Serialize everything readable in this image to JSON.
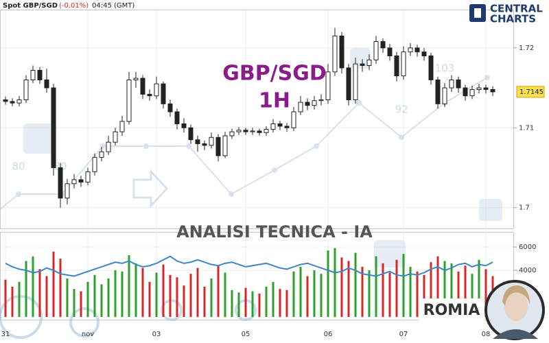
{
  "header": {
    "symbol": "Spot GBP/SGD",
    "change": "(-0.01%)",
    "time": "04:45 (GMT)"
  },
  "logo": {
    "line1": "CENTRAL",
    "line2": "CHARTS"
  },
  "watermark": {
    "labels": [
      "80",
      "80",
      "92",
      "103"
    ]
  },
  "badge": "ROMIA",
  "chart_data": {
    "type": "candlestick",
    "title": "GBP/SGD",
    "subtitle": "1H",
    "annotation": "ANALISI TECNICA - IA",
    "categories": [
      "31",
      null,
      null,
      null,
      null,
      null,
      null,
      null,
      null,
      null,
      null,
      null,
      "nov",
      null,
      null,
      null,
      null,
      null,
      null,
      null,
      null,
      null,
      "03",
      null,
      null,
      null,
      null,
      null,
      null,
      null,
      null,
      null,
      null,
      null,
      null,
      "05",
      null,
      null,
      null,
      null,
      null,
      null,
      null,
      null,
      null,
      null,
      null,
      "06",
      null,
      null,
      null,
      null,
      null,
      null,
      null,
      null,
      null,
      null,
      "07",
      null,
      null,
      null,
      null,
      null,
      null,
      null,
      null,
      null,
      null,
      null,
      "08",
      null
    ],
    "ohlc": [
      [
        1.7135,
        1.7139,
        1.7129,
        1.7133
      ],
      [
        1.7133,
        1.7137,
        1.7127,
        1.7131
      ],
      [
        1.7131,
        1.714,
        1.7127,
        1.7135
      ],
      [
        1.7135,
        1.7166,
        1.7131,
        1.716
      ],
      [
        1.716,
        1.7178,
        1.7156,
        1.7172
      ],
      [
        1.7172,
        1.7176,
        1.7155,
        1.716
      ],
      [
        1.716,
        1.7174,
        1.7144,
        1.715
      ],
      [
        1.715,
        1.7155,
        1.704,
        1.705
      ],
      [
        1.705,
        1.7056,
        1.7,
        1.7012
      ],
      [
        1.7012,
        1.7036,
        1.7004,
        1.703
      ],
      [
        1.703,
        1.7042,
        1.7024,
        1.7035
      ],
      [
        1.7035,
        1.704,
        1.7026,
        1.7032
      ],
      [
        1.7032,
        1.705,
        1.7028,
        1.7045
      ],
      [
        1.7045,
        1.7068,
        1.704,
        1.7063
      ],
      [
        1.7063,
        1.7076,
        1.7058,
        1.707
      ],
      [
        1.707,
        1.709,
        1.7066,
        1.7082
      ],
      [
        1.7082,
        1.71,
        1.7078,
        1.7095
      ],
      [
        1.7095,
        1.7115,
        1.709,
        1.7108
      ],
      [
        1.7108,
        1.717,
        1.7104,
        1.716
      ],
      [
        1.716,
        1.717,
        1.715,
        1.7162
      ],
      [
        1.7162,
        1.7166,
        1.7136,
        1.7142
      ],
      [
        1.7142,
        1.7148,
        1.7134,
        1.714
      ],
      [
        1.714,
        1.7164,
        1.7136,
        1.7155
      ],
      [
        1.7155,
        1.7158,
        1.7124,
        1.713
      ],
      [
        1.713,
        1.7135,
        1.7114,
        1.712
      ],
      [
        1.712,
        1.7124,
        1.7098,
        1.7105
      ],
      [
        1.7105,
        1.7112,
        1.7094,
        1.71
      ],
      [
        1.71,
        1.7104,
        1.708,
        1.7085
      ],
      [
        1.7085,
        1.709,
        1.707,
        1.708
      ],
      [
        1.708,
        1.7084,
        1.7072,
        1.7078
      ],
      [
        1.7078,
        1.7094,
        1.7074,
        1.7088
      ],
      [
        1.7088,
        1.7092,
        1.7058,
        1.7065
      ],
      [
        1.7065,
        1.7095,
        1.7062,
        1.709
      ],
      [
        1.709,
        1.7099,
        1.7086,
        1.7095
      ],
      [
        1.7095,
        1.7101,
        1.7091,
        1.7097
      ],
      [
        1.7097,
        1.71,
        1.7091,
        1.7095
      ],
      [
        1.7095,
        1.71,
        1.7091,
        1.7096
      ],
      [
        1.7096,
        1.7099,
        1.709,
        1.7094
      ],
      [
        1.7094,
        1.7102,
        1.709,
        1.7098
      ],
      [
        1.7098,
        1.7111,
        1.7094,
        1.7105
      ],
      [
        1.7105,
        1.7109,
        1.7097,
        1.7102
      ],
      [
        1.7102,
        1.7106,
        1.7095,
        1.71
      ],
      [
        1.71,
        1.7126,
        1.7096,
        1.712
      ],
      [
        1.712,
        1.714,
        1.7116,
        1.7132
      ],
      [
        1.7132,
        1.7137,
        1.7122,
        1.7128
      ],
      [
        1.7128,
        1.714,
        1.7123,
        1.7134
      ],
      [
        1.7134,
        1.7142,
        1.7128,
        1.7135
      ],
      [
        1.7135,
        1.718,
        1.713,
        1.717
      ],
      [
        1.717,
        1.7225,
        1.7165,
        1.7215
      ],
      [
        1.7215,
        1.722,
        1.7168,
        1.7175
      ],
      [
        1.7175,
        1.718,
        1.7128,
        1.7135
      ],
      [
        1.7135,
        1.7188,
        1.713,
        1.718
      ],
      [
        1.718,
        1.7186,
        1.717,
        1.7178
      ],
      [
        1.7178,
        1.7192,
        1.7172,
        1.7185
      ],
      [
        1.7185,
        1.7215,
        1.718,
        1.7208
      ],
      [
        1.7208,
        1.7212,
        1.7194,
        1.72
      ],
      [
        1.72,
        1.7205,
        1.7184,
        1.719
      ],
      [
        1.719,
        1.7195,
        1.7158,
        1.7165
      ],
      [
        1.7165,
        1.7202,
        1.716,
        1.7195
      ],
      [
        1.7195,
        1.7206,
        1.719,
        1.72
      ],
      [
        1.72,
        1.7204,
        1.7189,
        1.7195
      ],
      [
        1.7195,
        1.72,
        1.7184,
        1.719
      ],
      [
        1.719,
        1.7194,
        1.7154,
        1.716
      ],
      [
        1.716,
        1.7164,
        1.7124,
        1.713
      ],
      [
        1.713,
        1.7156,
        1.7126,
        1.715
      ],
      [
        1.715,
        1.7166,
        1.7145,
        1.716
      ],
      [
        1.716,
        1.7164,
        1.7144,
        1.715
      ],
      [
        1.715,
        1.7154,
        1.7134,
        1.714
      ],
      [
        1.714,
        1.7153,
        1.7136,
        1.7148
      ],
      [
        1.7148,
        1.7155,
        1.7143,
        1.715
      ],
      [
        1.715,
        1.7154,
        1.7143,
        1.7148
      ],
      [
        1.7148,
        1.7152,
        1.714,
        1.7145
      ]
    ],
    "last_price": 1.7145,
    "ylim": [
      1.6974,
      1.726
    ],
    "yticks": [
      1.7,
      1.71,
      1.72
    ],
    "up_color": "#ffffff",
    "down_color": "#222222",
    "volume": [
      3200,
      2600,
      3000,
      4800,
      5200,
      4100,
      3500,
      5600,
      5000,
      3300,
      2400,
      2200,
      3000,
      3600,
      2800,
      3300,
      4000,
      3900,
      5300,
      4600,
      4200,
      3000,
      3800,
      4500,
      3600,
      3400,
      2700,
      3700,
      4200,
      2600,
      3300,
      4400,
      3800,
      2300,
      2100,
      2500,
      2200,
      2000,
      2600,
      3000,
      2400,
      2300,
      3900,
      4300,
      3500,
      4000,
      3700,
      5700,
      5900,
      5100,
      4800,
      5500,
      4300,
      4000,
      5200,
      4600,
      3800,
      4900,
      5400,
      4300,
      3900,
      3600,
      4700,
      5200,
      4800,
      4600,
      3900,
      4400,
      3700,
      4900,
      4100,
      3500
    ],
    "volume_line": [
      4600,
      4300,
      4100,
      4000,
      3800,
      3900,
      4200,
      4000,
      3700,
      3600,
      3500,
      3700,
      3900,
      4100,
      4300,
      4500,
      4700,
      4600,
      4800,
      4500,
      4300,
      4400,
      4600,
      4900,
      5200,
      4800,
      4600,
      4700,
      4900,
      4700,
      4500,
      4400,
      4600,
      4700,
      4500,
      4300,
      4400,
      4500,
      4600,
      4400,
      4200,
      4100,
      4300,
      4500,
      4600,
      4400,
      4200,
      4000,
      3800,
      3900,
      4200,
      4000,
      3700,
      3600,
      3500,
      3700,
      3900,
      3600,
      3500,
      3700,
      3600,
      3800,
      4100,
      4300,
      4000,
      4200,
      4500,
      4600,
      4300,
      4500,
      4400,
      4700
    ],
    "vlim": [
      0,
      7180
    ],
    "vticks": [
      4000,
      6000
    ],
    "volume_up_color": "#2ca02c",
    "volume_down_color": "#d62728",
    "volume_line_color": "#3a86c8"
  }
}
